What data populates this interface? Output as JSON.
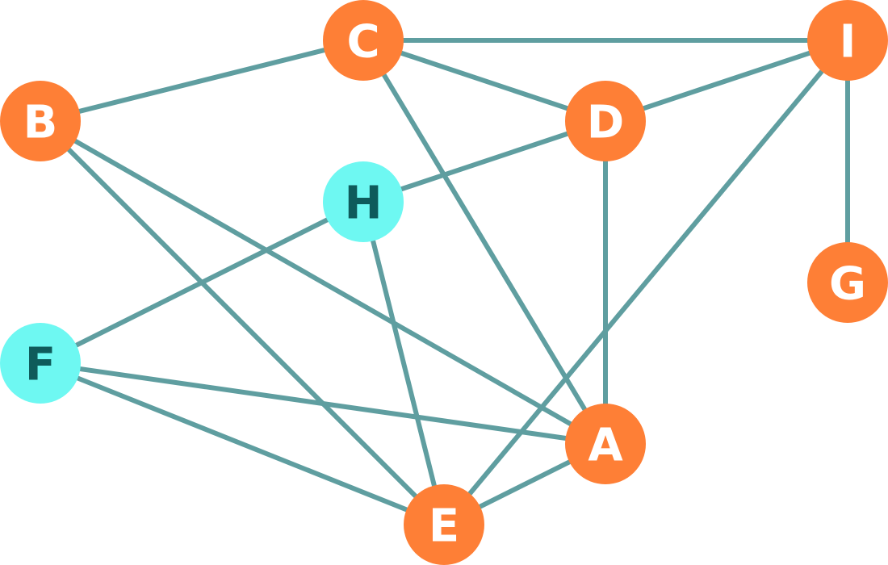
{
  "colors": {
    "edge": "#5f9ea0",
    "node_orange": "#fe7f36",
    "node_cyan": "#6ef8f2",
    "label_light": "#ffffff",
    "label_dark": "#0e5b5b"
  },
  "nodes": [
    {
      "id": "A",
      "label": "A",
      "style": "orange"
    },
    {
      "id": "B",
      "label": "B",
      "style": "orange"
    },
    {
      "id": "C",
      "label": "C",
      "style": "orange"
    },
    {
      "id": "D",
      "label": "D",
      "style": "orange"
    },
    {
      "id": "E",
      "label": "E",
      "style": "orange"
    },
    {
      "id": "F",
      "label": "F",
      "style": "cyan"
    },
    {
      "id": "G",
      "label": "G",
      "style": "orange"
    },
    {
      "id": "H",
      "label": "H",
      "style": "cyan"
    },
    {
      "id": "I",
      "label": "I",
      "style": "orange"
    }
  ],
  "edges": [
    [
      "C",
      "I"
    ],
    [
      "B",
      "C"
    ],
    [
      "C",
      "D"
    ],
    [
      "D",
      "I"
    ],
    [
      "C",
      "A"
    ],
    [
      "I",
      "G"
    ],
    [
      "I",
      "E"
    ],
    [
      "D",
      "H"
    ],
    [
      "D",
      "A"
    ],
    [
      "B",
      "E"
    ],
    [
      "B",
      "A"
    ],
    [
      "H",
      "F"
    ],
    [
      "H",
      "E"
    ],
    [
      "F",
      "A"
    ],
    [
      "F",
      "E"
    ],
    [
      "E",
      "A"
    ]
  ]
}
